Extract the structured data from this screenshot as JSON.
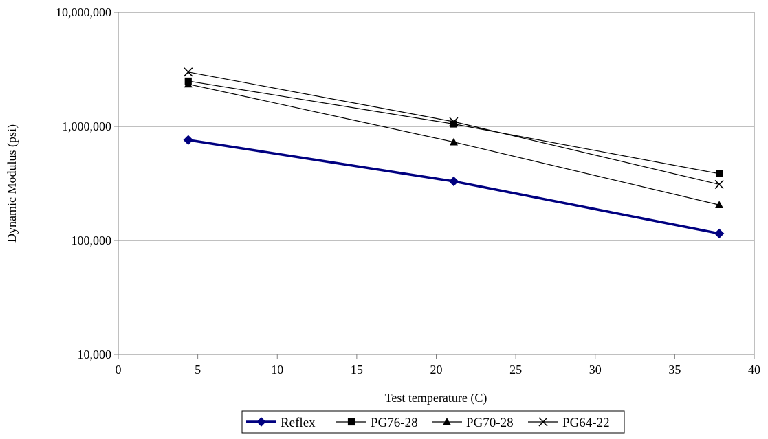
{
  "chart_data": {
    "type": "line",
    "xlabel": "Test temperature (C)",
    "ylabel": "Dynamic Modulus (psi)",
    "x_scale": "linear",
    "y_scale": "log",
    "xlim": [
      0,
      40
    ],
    "ylim": [
      10000,
      10000000
    ],
    "x_ticks": [
      0,
      5,
      10,
      15,
      20,
      25,
      30,
      35,
      40
    ],
    "x_tick_labels": [
      "0",
      "5",
      "10",
      "15",
      "20",
      "25",
      "30",
      "35",
      "40"
    ],
    "y_ticks": [
      10000,
      100000,
      1000000,
      10000000
    ],
    "y_tick_labels": [
      "10,000",
      "100,000",
      "1,000,000",
      "10,000,000"
    ],
    "grid": "horizontal major gridlines",
    "legend_position": "bottom",
    "series": [
      {
        "name": "Reflex",
        "marker": "diamond",
        "color": "#000080",
        "x": [
          4.4,
          21.1,
          37.8
        ],
        "y": [
          760000,
          330000,
          115000
        ]
      },
      {
        "name": "PG76-28",
        "marker": "square",
        "color": "#000000",
        "x": [
          4.4,
          21.1,
          37.8
        ],
        "y": [
          2500000,
          1050000,
          385000
        ]
      },
      {
        "name": "PG70-28",
        "marker": "triangle",
        "color": "#000000",
        "x": [
          4.4,
          21.1,
          37.8
        ],
        "y": [
          2350000,
          730000,
          205000
        ]
      },
      {
        "name": "PG64-22",
        "marker": "cross",
        "color": "#000000",
        "x": [
          4.4,
          21.1,
          37.8
        ],
        "y": [
          3000000,
          1100000,
          310000
        ]
      }
    ]
  }
}
